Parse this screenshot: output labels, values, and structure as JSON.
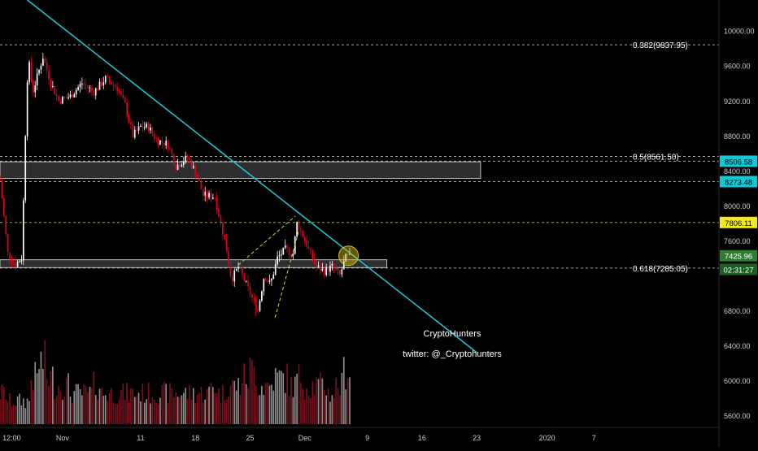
{
  "chart_data": {
    "type": "candlestick",
    "colors": {
      "background": "#000000",
      "bull": "#ffffff",
      "bear": "#e0001b",
      "vol_up": "#8c8c8c",
      "vol_down": "#7a0f1b",
      "trendline": "#1fc9d6",
      "fib_line": "#cfcfcf",
      "level_line": "#d8d830",
      "zone_border": "#bfbfbf",
      "axis_text": "#cccccc",
      "badge_cyan": "#11c9d6",
      "badge_yellow": "#f2ea1e",
      "badge_green": "#2e7d32",
      "badge_darkgreen": "#1b5e20"
    },
    "y_axis": {
      "range": [
        5500,
        10350
      ],
      "ticks": [
        {
          "value": 10000,
          "label": "10000.00"
        },
        {
          "value": 9600,
          "label": "9600.00"
        },
        {
          "value": 9200,
          "label": "9200.00"
        },
        {
          "value": 8800,
          "label": "8800.00"
        },
        {
          "value": 8400,
          "label": "8400.00"
        },
        {
          "value": 8000,
          "label": "8000.00"
        },
        {
          "value": 7600,
          "label": "7600.00"
        },
        {
          "value": 6800,
          "label": "6800.00"
        },
        {
          "value": 6400,
          "label": "6400.00"
        },
        {
          "value": 6000,
          "label": "6000.00"
        },
        {
          "value": 5600,
          "label": "5600.00"
        }
      ]
    },
    "x_axis": {
      "range_days": [
        0,
        92
      ],
      "ticks": [
        {
          "day": 1.5,
          "label": "12:00"
        },
        {
          "day": 8,
          "label": "Nov"
        },
        {
          "day": 18,
          "label": "11"
        },
        {
          "day": 25,
          "label": "18"
        },
        {
          "day": 32,
          "label": "25"
        },
        {
          "day": 39,
          "label": "Dec"
        },
        {
          "day": 47,
          "label": "9"
        },
        {
          "day": 54,
          "label": "16"
        },
        {
          "day": 61,
          "label": "23"
        },
        {
          "day": 70,
          "label": "2020"
        },
        {
          "day": 76,
          "label": "7"
        }
      ]
    },
    "ohlc_close_path": [
      {
        "day": 0.0,
        "price": 8300
      },
      {
        "day": 1.0,
        "price": 7450
      },
      {
        "day": 2.0,
        "price": 7330
      },
      {
        "day": 2.8,
        "price": 7400
      },
      {
        "day": 3.2,
        "price": 8700
      },
      {
        "day": 3.6,
        "price": 9700
      },
      {
        "day": 4.2,
        "price": 9300
      },
      {
        "day": 5.0,
        "price": 9550
      },
      {
        "day": 5.5,
        "price": 9700
      },
      {
        "day": 6.5,
        "price": 9400
      },
      {
        "day": 7.5,
        "price": 9200
      },
      {
        "day": 9.0,
        "price": 9250
      },
      {
        "day": 10.5,
        "price": 9400
      },
      {
        "day": 12.0,
        "price": 9300
      },
      {
        "day": 13.5,
        "price": 9450
      },
      {
        "day": 15.0,
        "price": 9350
      },
      {
        "day": 16.0,
        "price": 9150
      },
      {
        "day": 17.0,
        "price": 8800
      },
      {
        "day": 18.0,
        "price": 8900
      },
      {
        "day": 19.0,
        "price": 8900
      },
      {
        "day": 20.0,
        "price": 8750
      },
      {
        "day": 21.5,
        "price": 8700
      },
      {
        "day": 22.5,
        "price": 8450
      },
      {
        "day": 24.0,
        "price": 8550
      },
      {
        "day": 25.2,
        "price": 8350
      },
      {
        "day": 26.0,
        "price": 8120
      },
      {
        "day": 27.5,
        "price": 8100
      },
      {
        "day": 28.5,
        "price": 7700
      },
      {
        "day": 29.0,
        "price": 7500
      },
      {
        "day": 29.6,
        "price": 7150
      },
      {
        "day": 30.5,
        "price": 7300
      },
      {
        "day": 31.5,
        "price": 7100
      },
      {
        "day": 32.2,
        "price": 6950
      },
      {
        "day": 33.0,
        "price": 6800
      },
      {
        "day": 33.8,
        "price": 7200
      },
      {
        "day": 34.6,
        "price": 7100
      },
      {
        "day": 35.5,
        "price": 7400
      },
      {
        "day": 36.5,
        "price": 7500
      },
      {
        "day": 37.5,
        "price": 7450
      },
      {
        "day": 38.0,
        "price": 7800
      },
      {
        "day": 38.8,
        "price": 7650
      },
      {
        "day": 39.5,
        "price": 7500
      },
      {
        "day": 40.5,
        "price": 7300
      },
      {
        "day": 41.5,
        "price": 7250
      },
      {
        "day": 42.5,
        "price": 7300
      },
      {
        "day": 43.5,
        "price": 7200
      },
      {
        "day": 44.2,
        "price": 7400
      },
      {
        "day": 44.8,
        "price": 7426
      }
    ],
    "volume_path": [
      4,
      3,
      3,
      3,
      6,
      8,
      6,
      5,
      5,
      4,
      4,
      4,
      5,
      4,
      4,
      4,
      4,
      4,
      4,
      4,
      4,
      4,
      4,
      4,
      4,
      4,
      4,
      5,
      4,
      5,
      5,
      6,
      7,
      5,
      5,
      6,
      6,
      5,
      6,
      5,
      5,
      5,
      4,
      5,
      7,
      4
    ],
    "trendline": {
      "from": {
        "day": 3.5,
        "price": 10350
      },
      "to": {
        "day": 61,
        "price": 6320
      }
    },
    "horizontal_levels": [
      {
        "price": 9837.95,
        "label": "0.382(9837.95)",
        "style": "fib"
      },
      {
        "price": 8561.5,
        "label": "0.5(8561.50)",
        "style": "fib"
      },
      {
        "price": 7285.05,
        "label": "0.618(7285.05)",
        "style": "fib"
      },
      {
        "price": 8506.58,
        "style": "fib"
      },
      {
        "price": 8273.48,
        "style": "fib"
      },
      {
        "price": 7806.11,
        "style": "level"
      }
    ],
    "zones": [
      {
        "from_day": 0,
        "to_day": 61.5,
        "price_low": 8310,
        "price_high": 8500
      },
      {
        "from_day": 0,
        "to_day": 49.5,
        "price_low": 7290,
        "price_high": 7380
      }
    ],
    "wedge_lines": [
      {
        "from": {
          "day": 30.5,
          "price": 7320
        },
        "to": {
          "day": 37.8,
          "price": 7880
        }
      },
      {
        "from": {
          "day": 35.2,
          "price": 6720
        },
        "to": {
          "day": 38.2,
          "price": 7700
        }
      }
    ],
    "highlight_circle": {
      "day": 44.6,
      "price": 7426
    },
    "price_badges": [
      {
        "price": 8506.58,
        "label": "8506.58",
        "color": "badge_cyan",
        "text_color": "#000000"
      },
      {
        "price": 8273.48,
        "label": "8273.48",
        "color": "badge_cyan",
        "text_color": "#000000"
      },
      {
        "price": 7806.11,
        "label": "7806.11",
        "color": "badge_yellow",
        "text_color": "#000000"
      },
      {
        "price": 7425.96,
        "label": "7425.96",
        "color": "badge_green",
        "text_color": "#ffffff"
      },
      {
        "price": 7270,
        "label": "02:31:27",
        "color": "badge_darkgreen",
        "text_color": "#ffffff"
      }
    ],
    "annotations": [
      "CryptoHunters",
      "twitter: @_Cryptohunters"
    ]
  }
}
